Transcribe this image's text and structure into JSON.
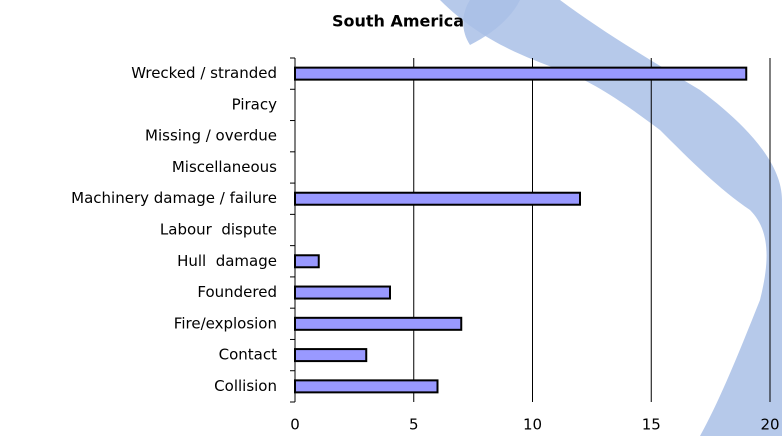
{
  "chart_data": {
    "type": "bar",
    "orientation": "horizontal",
    "title": "South America",
    "categories": [
      "Wrecked / stranded",
      "Piracy",
      "Missing / overdue",
      "Miscellaneous",
      "Machinery damage / failure",
      "Labour  dispute",
      "Hull  damage",
      "Foundered",
      "Fire/explosion",
      "Contact",
      "Collision"
    ],
    "values": [
      19,
      0,
      0,
      0,
      12,
      0,
      1,
      4,
      7,
      3,
      6
    ],
    "color": "#9999ff",
    "xlim": [
      0,
      20
    ],
    "xticks": [
      0,
      5,
      10,
      15,
      20
    ],
    "grid": true
  }
}
